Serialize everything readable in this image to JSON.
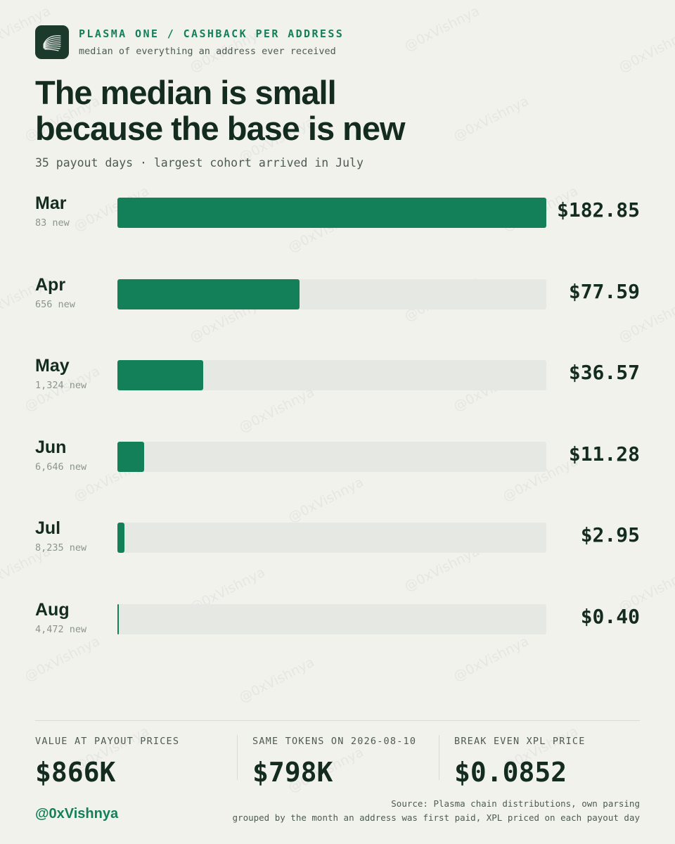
{
  "header": {
    "kicker": "PLASMA ONE / CASHBACK PER ADDRESS",
    "kicker_sub": "median of everything an address ever received",
    "headline_line1": "The median is small",
    "headline_line2": "because the base is new",
    "subtitle": "35 payout days · largest cohort arrived in July"
  },
  "chart_data": {
    "type": "bar",
    "orientation": "horizontal",
    "title": "The median is small because the base is new",
    "subtitle": "35 payout days · largest cohort arrived in July",
    "categories": [
      "Mar",
      "Apr",
      "May",
      "Jun",
      "Jul",
      "Aug"
    ],
    "sublabels": [
      "83 new",
      "656 new",
      "1,324 new",
      "6,646 new",
      "8,235 new",
      "4,472 new"
    ],
    "values": [
      182.85,
      77.59,
      36.57,
      11.28,
      2.95,
      0.4
    ],
    "value_labels": [
      "$182.85",
      "$77.59",
      "$36.57",
      "$11.28",
      "$2.95",
      "$0.40"
    ],
    "xlim": [
      0,
      182.85
    ],
    "grid": false,
    "colors": {
      "bar": "#14805a",
      "track": "#e6e9e3"
    }
  },
  "stats": [
    {
      "label": "VALUE AT PAYOUT PRICES",
      "value": "$866K"
    },
    {
      "label": "SAME TOKENS ON 2026-08-10",
      "value": "$798K"
    },
    {
      "label": "BREAK EVEN XPL PRICE",
      "value": "$0.0852"
    }
  ],
  "footer": {
    "handle": "@0xVishnya",
    "source_line1": "Source: Plasma chain distributions, own parsing",
    "source_line2": "grouped by the month an address was first paid, XPL priced on each payout day"
  },
  "watermark": "@0xVishnya",
  "icons": {
    "logo": "plasma-logo-icon"
  },
  "colors": {
    "background": "#f2f2ed",
    "accent": "#14805a",
    "ink": "#142b20",
    "logo_bg": "#1b3a2c"
  }
}
